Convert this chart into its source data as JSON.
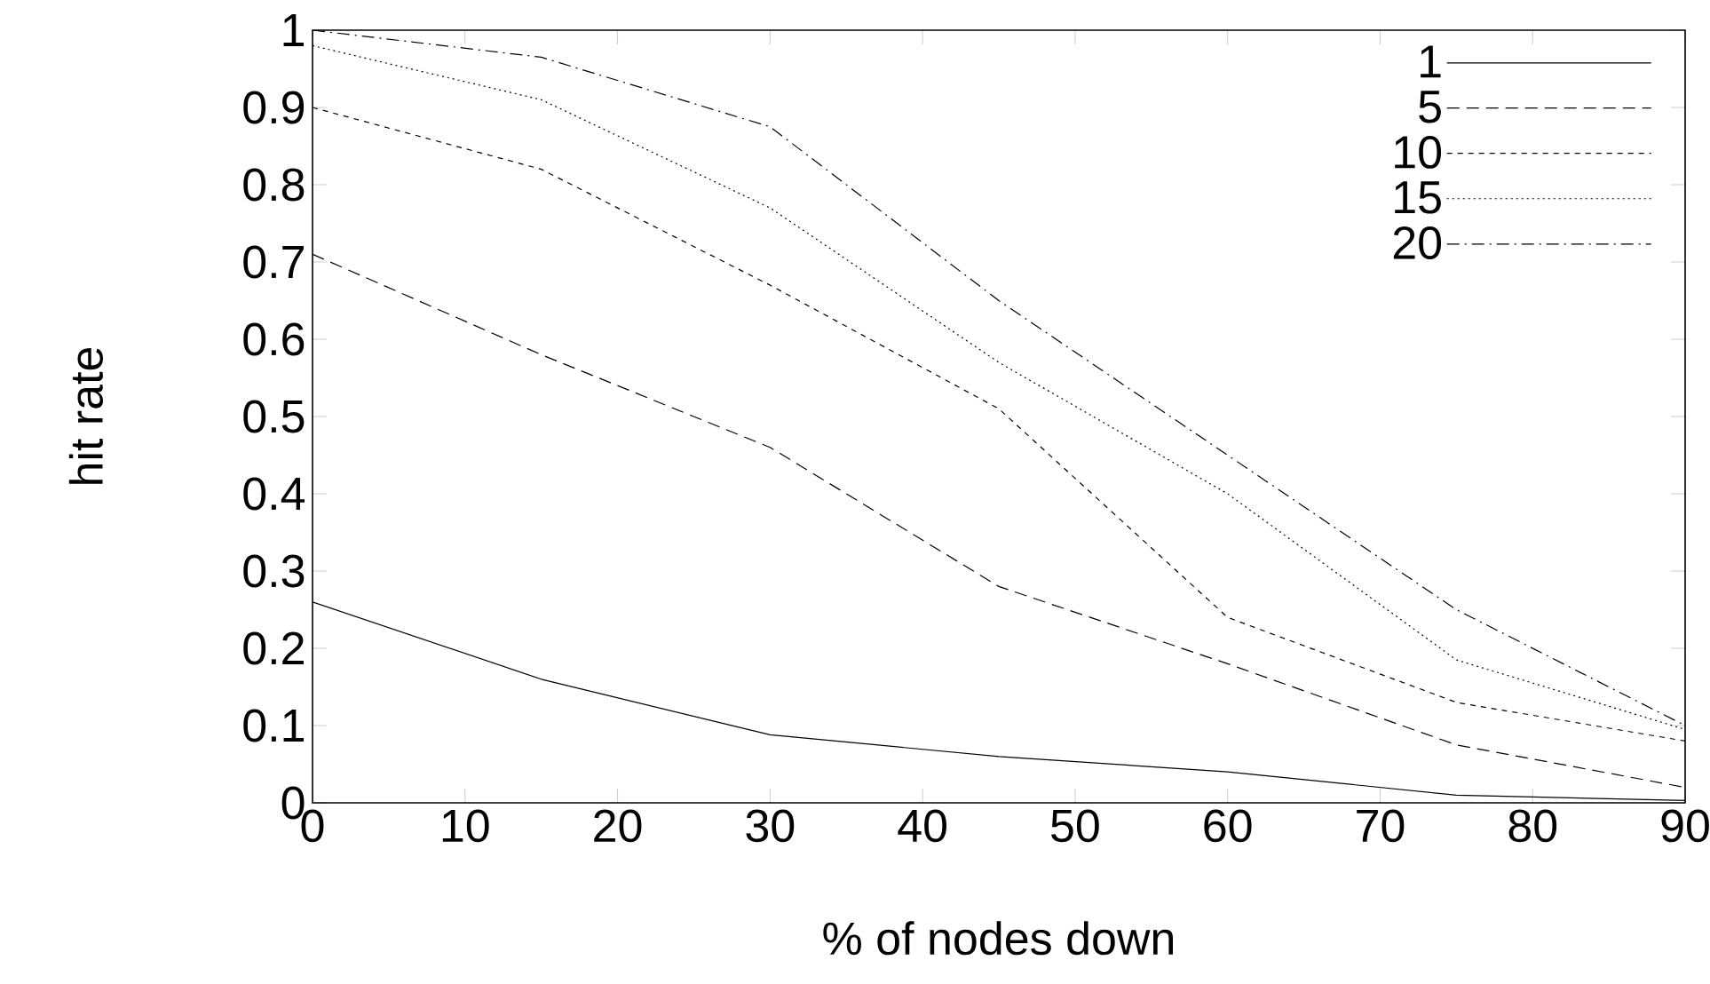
{
  "chart_data": {
    "type": "line",
    "xlabel": "% of nodes down",
    "ylabel": "hit rate",
    "x": [
      0,
      15,
      30,
      45,
      60,
      75,
      90
    ],
    "xlim": [
      0,
      90
    ],
    "xticks": [
      0,
      10,
      20,
      30,
      40,
      50,
      60,
      70,
      80,
      90
    ],
    "ylim": [
      0,
      1
    ],
    "yticks": [
      0,
      0.1,
      0.2,
      0.3,
      0.4,
      0.5,
      0.6,
      0.7,
      0.8,
      0.9,
      1
    ],
    "grid": false,
    "legend": "top right",
    "marker": "none",
    "series": [
      {
        "name": "1",
        "color": "#000000",
        "line_style": "solid",
        "values": [
          0.26,
          0.16,
          0.088,
          0.06,
          0.04,
          0.01,
          0.003
        ]
      },
      {
        "name": "5",
        "color": "#000000",
        "line_style": "dashed",
        "values": [
          0.71,
          0.58,
          0.46,
          0.28,
          0.18,
          0.075,
          0.02
        ]
      },
      {
        "name": "10",
        "color": "#000000",
        "line_style": "densely dashed",
        "values": [
          0.9,
          0.82,
          0.67,
          0.51,
          0.24,
          0.13,
          0.08
        ]
      },
      {
        "name": "15",
        "color": "#000000",
        "line_style": "dotted",
        "values": [
          0.98,
          0.91,
          0.77,
          0.57,
          0.4,
          0.185,
          0.095
        ]
      },
      {
        "name": "20",
        "color": "#000000",
        "line_style": "dashdot",
        "values": [
          1.0,
          0.965,
          0.875,
          0.65,
          0.45,
          0.25,
          0.1
        ]
      }
    ]
  }
}
